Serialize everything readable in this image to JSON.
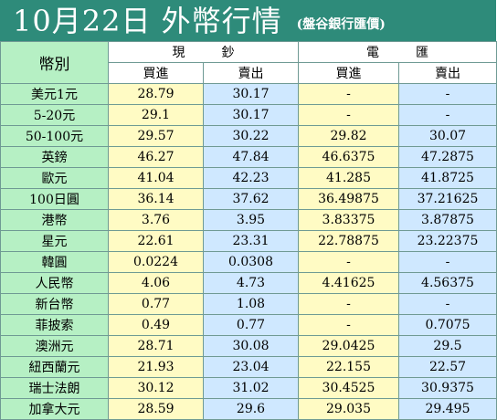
{
  "header": {
    "title": "10月22日 外幣行情",
    "source": "(盤谷銀行匯價)"
  },
  "table": {
    "currency_header": "幣別",
    "cash_header": "現鈔",
    "transfer_header": "電匯",
    "buy_label": "買進",
    "sell_label": "賣出",
    "rows": [
      {
        "name": "美元1元",
        "cash_buy": "28.79",
        "cash_sell": "30.17",
        "tt_buy": "-",
        "tt_sell": "-"
      },
      {
        "name": "5-20元",
        "cash_buy": "29.1",
        "cash_sell": "30.17",
        "tt_buy": "-",
        "tt_sell": "-"
      },
      {
        "name": "50-100元",
        "cash_buy": "29.57",
        "cash_sell": "30.22",
        "tt_buy": "29.82",
        "tt_sell": "30.07"
      },
      {
        "name": "英鎊",
        "cash_buy": "46.27",
        "cash_sell": "47.84",
        "tt_buy": "46.6375",
        "tt_sell": "47.2875"
      },
      {
        "name": "歐元",
        "cash_buy": "41.04",
        "cash_sell": "42.23",
        "tt_buy": "41.285",
        "tt_sell": "41.8725"
      },
      {
        "name": "100日圓",
        "cash_buy": "36.14",
        "cash_sell": "37.62",
        "tt_buy": "36.49875",
        "tt_sell": "37.21625"
      },
      {
        "name": "港幣",
        "cash_buy": "3.76",
        "cash_sell": "3.95",
        "tt_buy": "3.83375",
        "tt_sell": "3.87875"
      },
      {
        "name": "星元",
        "cash_buy": "22.61",
        "cash_sell": "23.31",
        "tt_buy": "22.78875",
        "tt_sell": "23.22375"
      },
      {
        "name": "韓圓",
        "cash_buy": "0.0224",
        "cash_sell": "0.0308",
        "tt_buy": "-",
        "tt_sell": "-"
      },
      {
        "name": "人民幣",
        "cash_buy": "4.06",
        "cash_sell": "4.73",
        "tt_buy": "4.41625",
        "tt_sell": "4.56375"
      },
      {
        "name": "新台幣",
        "cash_buy": "0.77",
        "cash_sell": "1.08",
        "tt_buy": "-",
        "tt_sell": "-"
      },
      {
        "name": "菲披索",
        "cash_buy": "0.49",
        "cash_sell": "0.77",
        "tt_buy": "-",
        "tt_sell": "0.7075"
      },
      {
        "name": "澳洲元",
        "cash_buy": "28.71",
        "cash_sell": "30.08",
        "tt_buy": "29.0425",
        "tt_sell": "29.5"
      },
      {
        "name": "紐西蘭元",
        "cash_buy": "21.93",
        "cash_sell": "23.04",
        "tt_buy": "22.155",
        "tt_sell": "22.57"
      },
      {
        "name": "瑞士法朗",
        "cash_buy": "30.12",
        "cash_sell": "31.02",
        "tt_buy": "30.4525",
        "tt_sell": "30.9375"
      },
      {
        "name": "加拿大元",
        "cash_buy": "28.59",
        "cash_sell": "29.6",
        "tt_buy": "29.035",
        "tt_sell": "29.495"
      }
    ]
  }
}
